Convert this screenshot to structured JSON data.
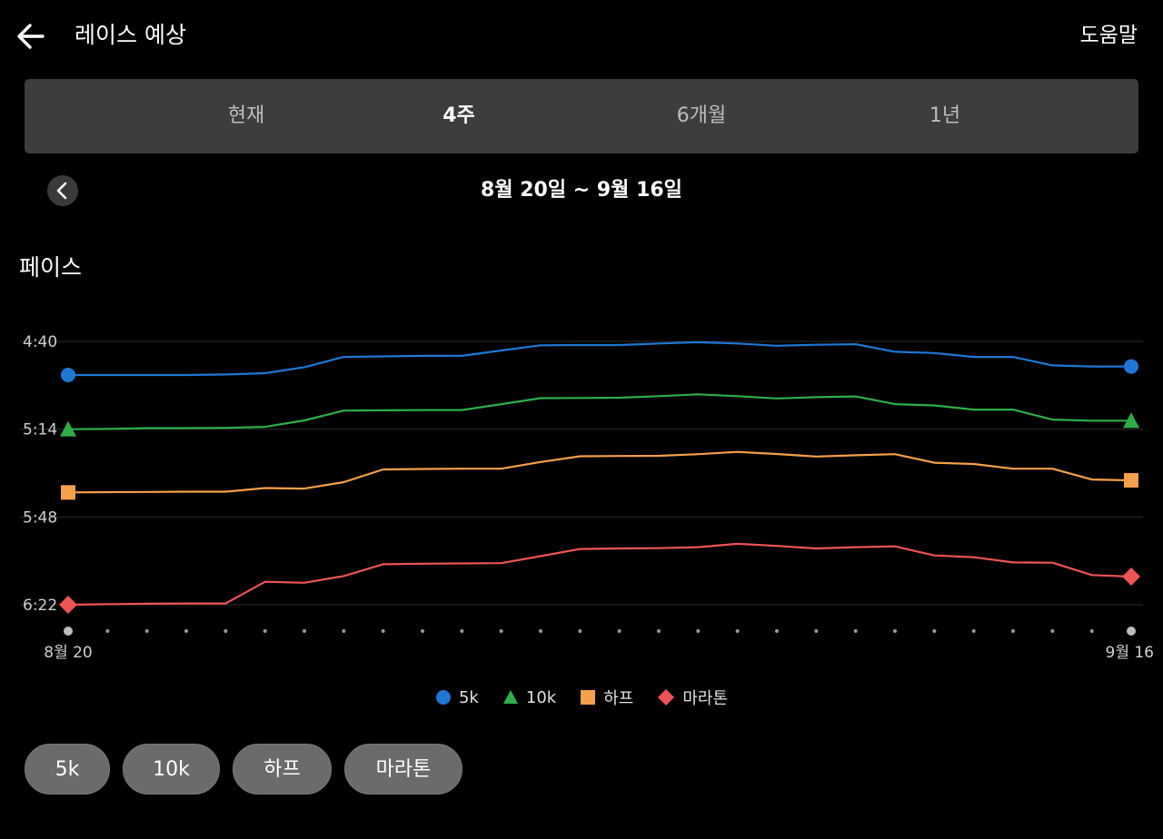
{
  "header": {
    "title": "레이스 예상",
    "help": "도움말"
  },
  "tabs": [
    {
      "label": "현재",
      "active": false
    },
    {
      "label": "4주",
      "active": true
    },
    {
      "label": "6개월",
      "active": false
    },
    {
      "label": "1년",
      "active": false
    }
  ],
  "range": {
    "label": "8월 20일 ~ 9월 16일"
  },
  "section": {
    "title": "페이스"
  },
  "chart_data": {
    "type": "line",
    "ylabel": "",
    "y_inverted": true,
    "y_ticks": [
      "4:40",
      "5:14",
      "5:48",
      "6:22"
    ],
    "y_tick_seconds": [
      280,
      314,
      348,
      382
    ],
    "ylim_seconds": [
      280,
      382
    ],
    "x_first_label": "8월 20",
    "x_last_label": "9월 16",
    "x_points": 28,
    "grid": true,
    "legend_position": "bottom",
    "series": [
      {
        "name": "5k",
        "color": "#1f77d4",
        "marker": "circle",
        "values_seconds": [
          293,
          293,
          293,
          293,
          292.8,
          292.3,
          290,
          286,
          285.8,
          285.6,
          285.6,
          283.5,
          281.5,
          281.4,
          281.4,
          280.8,
          280.3,
          280.8,
          281.7,
          281.3,
          281.1,
          284,
          284.5,
          286,
          286,
          289.3,
          289.7,
          289.7
        ]
      },
      {
        "name": "10k",
        "color": "#2fae4a",
        "marker": "triangle",
        "values_seconds": [
          314,
          313.9,
          313.6,
          313.6,
          313.5,
          313.1,
          310.6,
          306.8,
          306.7,
          306.6,
          306.6,
          304.3,
          302,
          301.9,
          301.8,
          301.2,
          300.5,
          301.2,
          302.1,
          301.6,
          301.3,
          304.3,
          304.8,
          306.4,
          306.4,
          310.3,
          310.7,
          310.7
        ]
      },
      {
        "name": "하프",
        "color": "#f5a04a",
        "marker": "square",
        "values_seconds": [
          338.5,
          338.4,
          338.3,
          338.2,
          338.2,
          336.8,
          337,
          334.5,
          329.6,
          329.4,
          329.3,
          329.3,
          326.7,
          324.5,
          324.4,
          324.3,
          323.7,
          322.8,
          323.6,
          324.6,
          324.1,
          323.7,
          327,
          327.5,
          329.3,
          329.3,
          333.5,
          333.8
        ]
      },
      {
        "name": "마라톤",
        "color": "#ee5454",
        "marker": "diamond",
        "values_seconds": [
          382,
          381.8,
          381.6,
          381.5,
          381.5,
          373.1,
          373.5,
          370.9,
          366.3,
          366.1,
          366,
          365.9,
          363.2,
          360.4,
          360.2,
          360.1,
          359.7,
          358.4,
          359.2,
          360.2,
          359.7,
          359.4,
          362.9,
          363.6,
          365.6,
          365.7,
          370.5,
          371.1
        ]
      }
    ]
  },
  "filters": [
    {
      "label": "5k"
    },
    {
      "label": "10k"
    },
    {
      "label": "하프"
    },
    {
      "label": "마라톤"
    }
  ]
}
